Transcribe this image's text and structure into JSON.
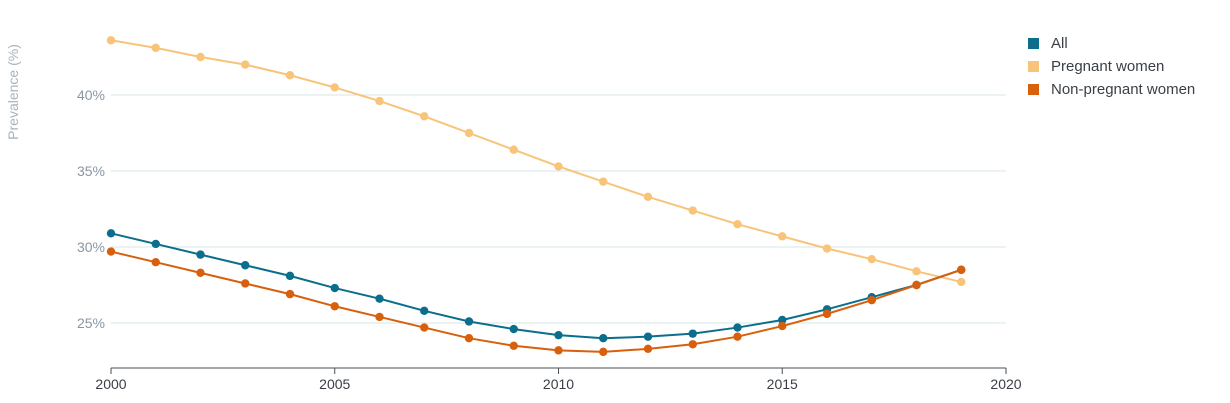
{
  "chart_data": {
    "type": "line",
    "ylabel": "Prevalence (%)",
    "x": [
      2000,
      2001,
      2002,
      2003,
      2004,
      2005,
      2006,
      2007,
      2008,
      2009,
      2010,
      2011,
      2012,
      2013,
      2014,
      2015,
      2016,
      2017,
      2018,
      2019
    ],
    "xlim": [
      2000,
      2020
    ],
    "ylim": [
      22,
      45
    ],
    "xticks": [
      "2000",
      "2005",
      "2010",
      "2015",
      "2020"
    ],
    "yticks": [
      "25%",
      "30%",
      "35%",
      "40%"
    ],
    "grid": true,
    "legend_position": "top-right",
    "series": [
      {
        "name": "All",
        "color": "#0b6e8c",
        "values": [
          30.9,
          30.2,
          29.5,
          28.8,
          28.1,
          27.3,
          26.6,
          25.8,
          25.1,
          24.6,
          24.2,
          24.0,
          24.1,
          24.3,
          24.7,
          25.2,
          25.9,
          26.7,
          27.5,
          28.5
        ]
      },
      {
        "name": "Pregnant women",
        "color": "#f7c47a",
        "values": [
          43.6,
          43.1,
          42.5,
          42.0,
          41.3,
          40.5,
          39.6,
          38.6,
          37.5,
          36.4,
          35.3,
          34.3,
          33.3,
          32.4,
          31.5,
          30.7,
          29.9,
          29.2,
          28.4,
          27.7
        ]
      },
      {
        "name": "Non-pregnant women",
        "color": "#d85f0c",
        "values": [
          29.7,
          29.0,
          28.3,
          27.6,
          26.9,
          26.1,
          25.4,
          24.7,
          24.0,
          23.5,
          23.2,
          23.1,
          23.3,
          23.6,
          24.1,
          24.8,
          25.6,
          26.5,
          27.5,
          28.5
        ]
      }
    ]
  }
}
